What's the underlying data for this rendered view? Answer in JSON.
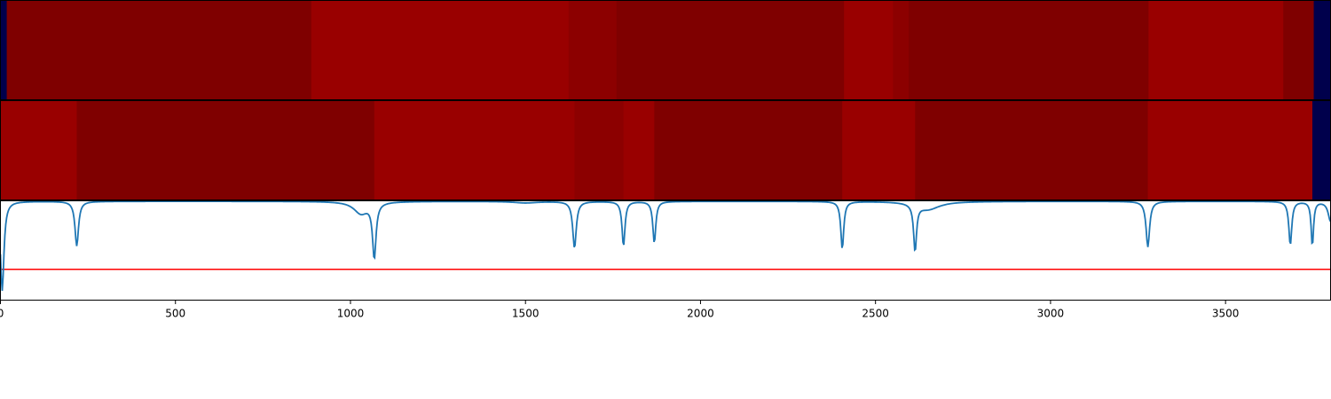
{
  "chart_data": [
    {
      "type": "heatmap",
      "panel": "top-strip",
      "x_edges": [
        0,
        18,
        888,
        1623,
        1760,
        2410,
        2550,
        2595,
        3280,
        3665,
        3752,
        3800
      ],
      "segment_values": [
        0.0,
        0.88,
        0.93,
        0.91,
        0.88,
        0.93,
        0.91,
        0.88,
        0.93,
        0.88,
        0.0
      ],
      "colors": [
        "#00004c",
        "#7f0000",
        "#990000",
        "#8c0000",
        "#7f0000",
        "#990000",
        "#8c0000",
        "#7f0000",
        "#990000",
        "#7f0000",
        "#00004c"
      ],
      "colormap": "seismic",
      "xlim": [
        0,
        3800
      ]
    },
    {
      "type": "heatmap",
      "panel": "middle-strip",
      "x_edges": [
        0,
        218,
        1068,
        1640,
        1780,
        1868,
        2405,
        2613,
        3278,
        3748,
        3800
      ],
      "segment_values": [
        0.93,
        0.88,
        0.93,
        0.91,
        0.93,
        0.88,
        0.93,
        0.88,
        0.93,
        0.0
      ],
      "colors": [
        "#990000",
        "#7f0000",
        "#990000",
        "#8c0000",
        "#990000",
        "#7f0000",
        "#990000",
        "#7f0000",
        "#990000",
        "#00004c"
      ],
      "colormap": "seismic",
      "xlim": [
        0,
        3800
      ]
    },
    {
      "type": "line",
      "panel": "bottom-signal",
      "xlim": [
        0,
        3800
      ],
      "ylim": [
        0,
        1
      ],
      "baseline": 0.995,
      "threshold": 0.31,
      "threshold_color": "#ff0000",
      "line_color": "#1f77b4",
      "dips": [
        {
          "x": 5,
          "depth": 0.9,
          "width": 6
        },
        {
          "x": 218,
          "depth": 0.45,
          "width": 6
        },
        {
          "x": 1068,
          "depth": 0.55,
          "width": 6
        },
        {
          "x": 1030,
          "depth": 0.12,
          "width": 25
        },
        {
          "x": 1500,
          "depth": 0.015,
          "width": 40
        },
        {
          "x": 1640,
          "depth": 0.47,
          "width": 6
        },
        {
          "x": 1780,
          "depth": 0.45,
          "width": 5
        },
        {
          "x": 1868,
          "depth": 0.42,
          "width": 5
        },
        {
          "x": 2405,
          "depth": 0.48,
          "width": 5
        },
        {
          "x": 2613,
          "depth": 0.47,
          "width": 5
        },
        {
          "x": 2650,
          "depth": 0.08,
          "width": 40
        },
        {
          "x": 3278,
          "depth": 0.46,
          "width": 6
        },
        {
          "x": 3685,
          "depth": 0.44,
          "width": 5
        },
        {
          "x": 3748,
          "depth": 0.45,
          "width": 4
        },
        {
          "x": 3800,
          "depth": 0.2,
          "width": 8
        }
      ],
      "xticks": [
        0,
        500,
        1000,
        1500,
        2000,
        2500,
        3000,
        3500
      ],
      "xtick_labels": [
        "0",
        "500",
        "1000",
        "1500",
        "2000",
        "2500",
        "3000",
        "3500"
      ]
    }
  ]
}
